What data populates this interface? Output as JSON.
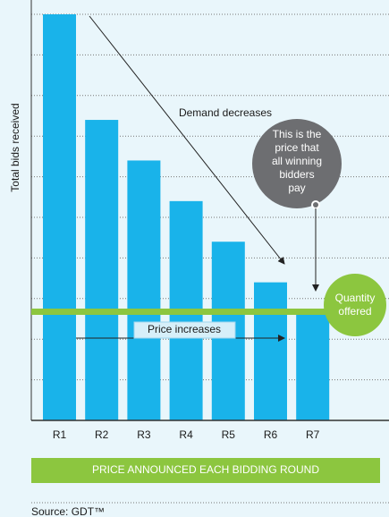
{
  "chart_data": {
    "type": "bar",
    "y_label": "Total bids received",
    "categories": [
      "R1",
      "R2",
      "R3",
      "R4",
      "R5",
      "R6",
      "R7"
    ],
    "values": [
      10,
      7.4,
      6.4,
      5.4,
      4.4,
      3.4,
      2.6
    ],
    "color": "#19b3ea",
    "ylim": [
      0,
      10
    ],
    "yticks": [
      1,
      2,
      3,
      4,
      5,
      6,
      7,
      8,
      9,
      10
    ],
    "grid": true,
    "annotations": {
      "demand": "Demand decreases",
      "price": "Price increases",
      "winning_price": [
        "This is the",
        "price that",
        "all winning",
        "bidders",
        "pay"
      ],
      "quantity": [
        "Quantity",
        "offered"
      ]
    },
    "footer_band": "PRICE ANNOUNCED EACH BIDDING ROUND",
    "source": "Source: GDT™"
  }
}
